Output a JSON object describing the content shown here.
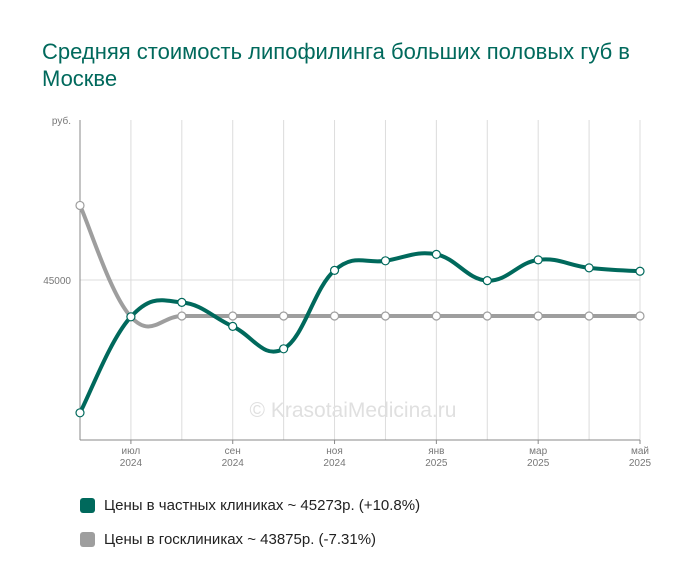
{
  "title": "Средняя стоимость липофилинга больших половых губ в Москве",
  "watermark": "© KrasotaiMedicina.ru",
  "colors": {
    "private": "#00695c",
    "public": "#9e9e9e"
  },
  "chart_data": {
    "type": "line",
    "ylabel": "руб.",
    "y_ticks": [
      45000
    ],
    "ylim": [
      40000,
      50000
    ],
    "x_ticks": [
      {
        "label": "июл",
        "year": "2024",
        "x": 1
      },
      {
        "label": "сен",
        "year": "2024",
        "x": 3
      },
      {
        "label": "ноя",
        "year": "2024",
        "x": 5
      },
      {
        "label": "янв",
        "year": "2025",
        "x": 7
      },
      {
        "label": "мар",
        "year": "2025",
        "x": 9
      },
      {
        "label": "май",
        "year": "2025",
        "x": 11
      }
    ],
    "xlim": [
      0,
      11
    ],
    "series": [
      {
        "name": "Цены в частных клиниках",
        "legend": "Цены в частных клиниках ~ 45273р. (+10.8%)",
        "color": "#00695c",
        "x": [
          0,
          1,
          2,
          3,
          4,
          5,
          6,
          7,
          8,
          9,
          10,
          11
        ],
        "values": [
          40850,
          43850,
          44300,
          43550,
          42850,
          45300,
          45600,
          45800,
          44980,
          45630,
          45380,
          45273
        ]
      },
      {
        "name": "Цены в госклиниках",
        "legend": "Цены в госклиниках ~ 43875р. (-7.31%)",
        "color": "#9e9e9e",
        "x": [
          0,
          1,
          2,
          3,
          4,
          5,
          6,
          7,
          8,
          9,
          10,
          11
        ],
        "values": [
          47330,
          43850,
          43875,
          43875,
          43875,
          43875,
          43875,
          43875,
          43875,
          43875,
          43875,
          43875
        ]
      }
    ]
  }
}
